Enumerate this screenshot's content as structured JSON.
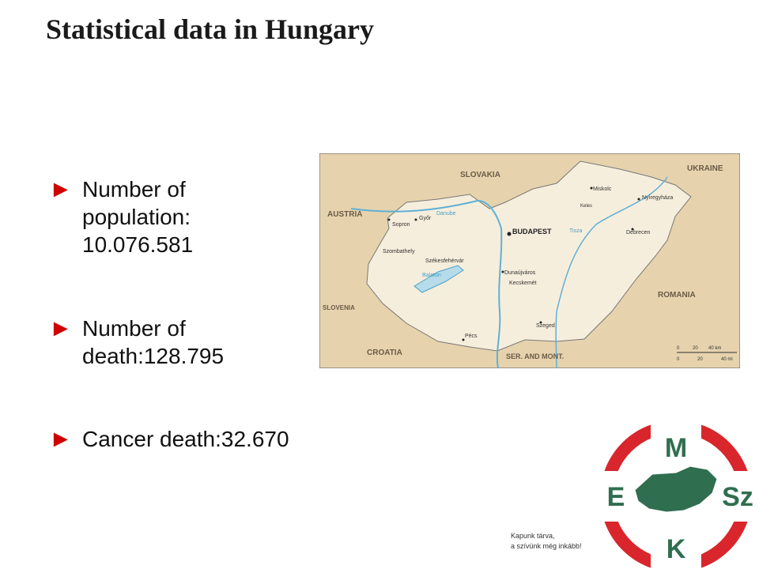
{
  "header": {
    "title": "Statistical data in Hungary"
  },
  "bullets": [
    "Number of population: 10.076.581",
    "Number of death:128.795",
    "Cancer death:32.670"
  ],
  "map": {
    "countries": [
      "SLOVAKIA",
      "UKRAINE",
      "AUSTRIA",
      "ROMANIA",
      "SLOVENIA",
      "CROATIA",
      "SER. AND MONT."
    ],
    "capital": "BUDAPEST",
    "cities": [
      "Győr",
      "Sopron",
      "Szombathely",
      "Székesfehérvár",
      "Miskolc",
      "Keles",
      "Nyíregyháza",
      "Debrecen",
      "Dunaújváros",
      "Kecskemét",
      "Szeged",
      "Pécs"
    ],
    "lakes": [
      "Balaton"
    ],
    "rivers": [
      "Danube",
      "Tisza"
    ],
    "scale": [
      "0",
      "20",
      "40 km",
      "0",
      "20",
      "40 mi"
    ]
  },
  "logo": {
    "letters": [
      "M",
      "E",
      "Sz",
      "K"
    ],
    "motto": [
      "Kapunk tárva,",
      "a szívünk még inkább!"
    ]
  }
}
